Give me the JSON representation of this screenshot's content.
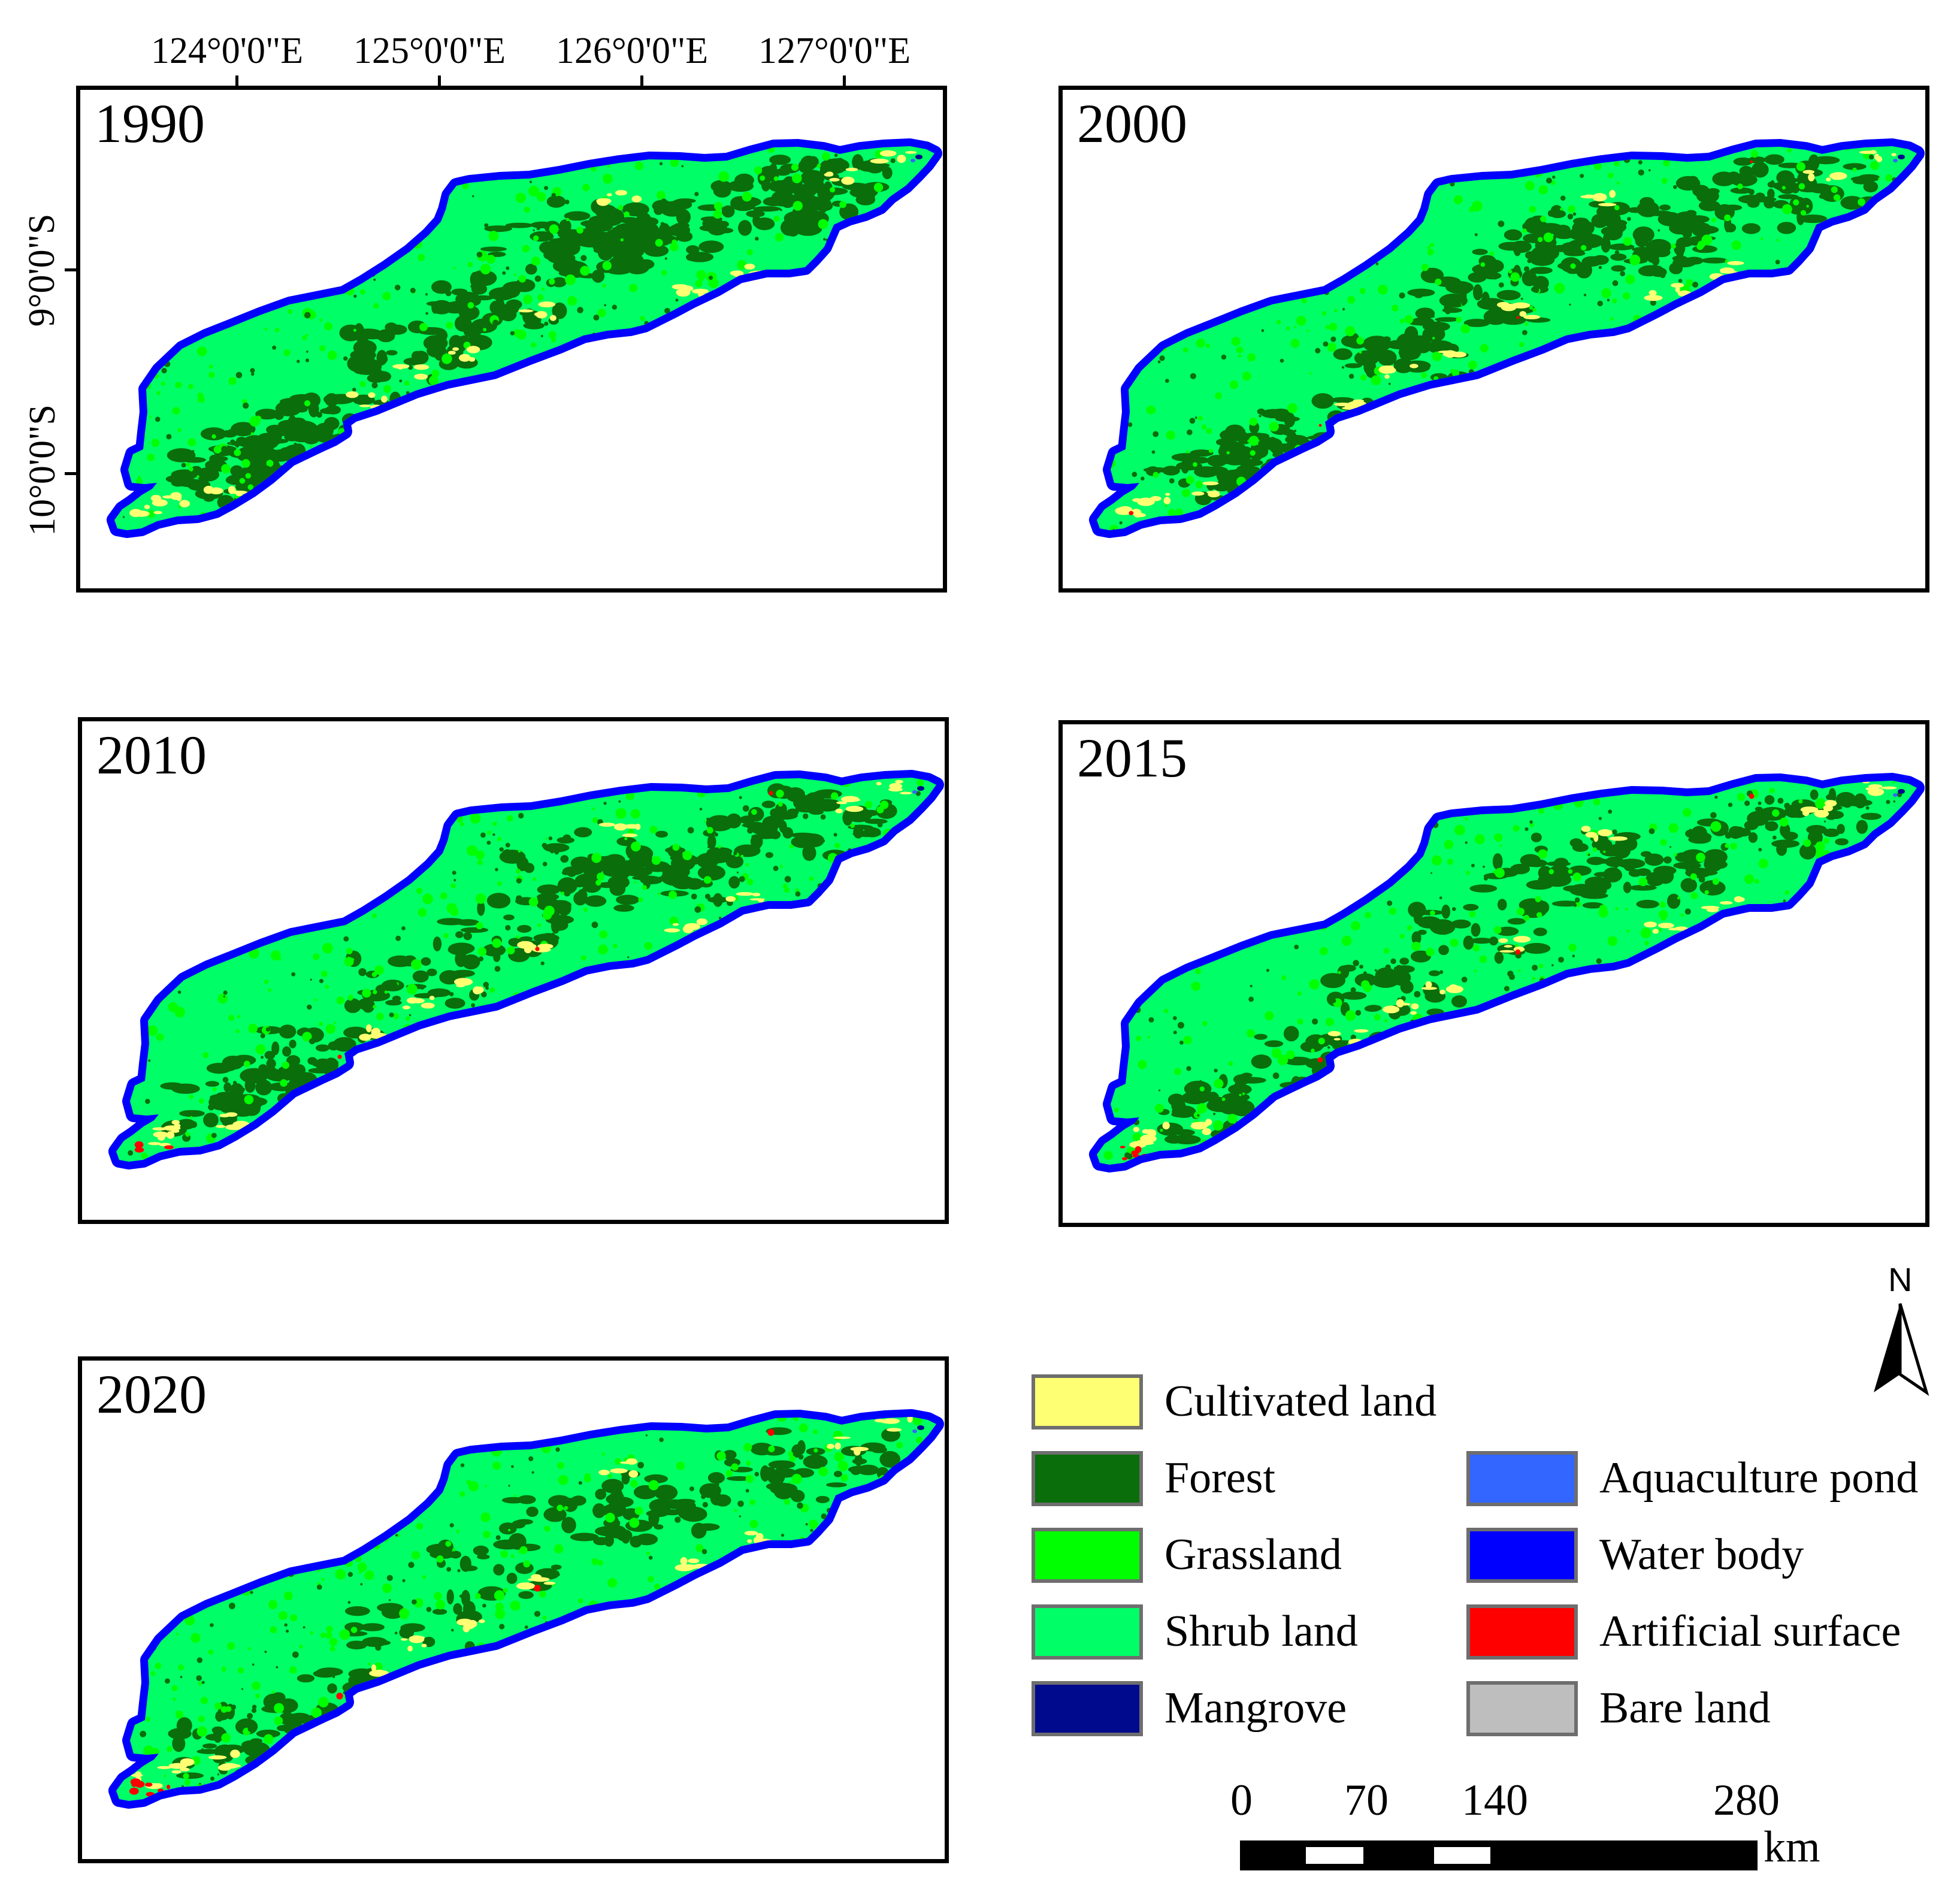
{
  "figure": {
    "longitude_labels": [
      "124°0'0\"E",
      "125°0'0\"E",
      "126°0'0\"E",
      "127°0'0\"E"
    ],
    "latitude_labels": [
      "9°0'0\"S",
      "10°0'0\"S"
    ]
  },
  "panels": [
    {
      "year": "1990"
    },
    {
      "year": "2000"
    },
    {
      "year": "2010"
    },
    {
      "year": "2015"
    },
    {
      "year": "2020"
    }
  ],
  "legend": {
    "left_column": [
      {
        "label": "Cultivated land",
        "color": "#ffff73",
        "icon": "cultivated-land-swatch"
      },
      {
        "label": "Forest",
        "color": "#0a6e0a",
        "icon": "forest-swatch"
      },
      {
        "label": "Grassland",
        "color": "#00ff00",
        "icon": "grassland-swatch"
      },
      {
        "label": "Shrub land",
        "color": "#00ff66",
        "icon": "shrub-land-swatch"
      },
      {
        "label": "Mangrove",
        "color": "#000a8c",
        "icon": "mangrove-swatch"
      }
    ],
    "right_column": [
      {
        "label": "Aquaculture pond",
        "color": "#3366ff",
        "icon": "aquaculture-pond-swatch"
      },
      {
        "label": "Water body",
        "color": "#0000ff",
        "icon": "water-body-swatch"
      },
      {
        "label": "Artificial surface",
        "color": "#ff0000",
        "icon": "artificial-surface-swatch"
      },
      {
        "label": "Bare land",
        "color": "#bebebe",
        "icon": "bare-land-swatch"
      }
    ]
  },
  "scale_bar": {
    "ticks": [
      "0",
      "70",
      "140",
      "280"
    ],
    "unit": "km"
  },
  "north_arrow": {
    "letter": "N",
    "icon": "north-arrow-icon"
  }
}
